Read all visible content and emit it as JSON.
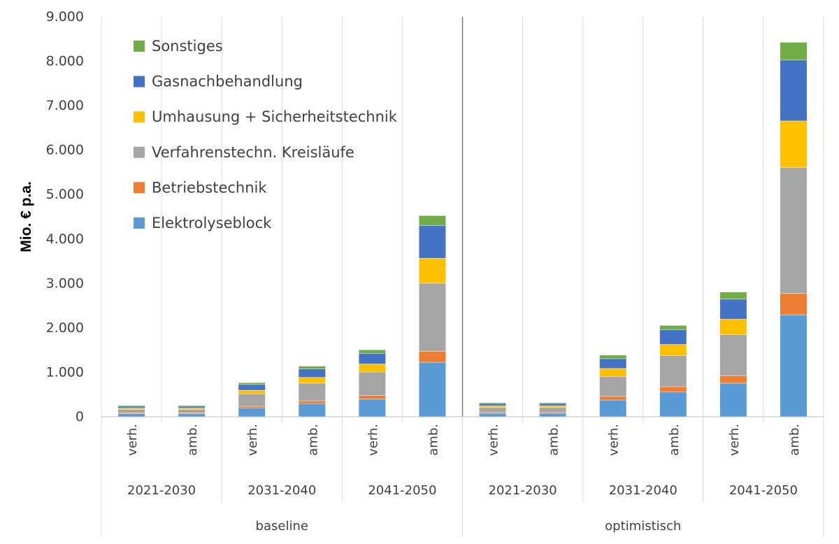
{
  "chart_data": {
    "type": "bar",
    "stacked": true,
    "ylabel": "Mio. € p.a.",
    "ylim": [
      0,
      9000
    ],
    "yticks": [
      "0",
      "1.000",
      "2.000",
      "3.000",
      "4.000",
      "5.000",
      "6.000",
      "7.000",
      "8.000",
      "9.000"
    ],
    "grid": "vertical between categories",
    "legend_position": "top-left inside plot",
    "scenarios": [
      "baseline",
      "optimistisch"
    ],
    "periods": [
      "2021-2030",
      "2031-2040",
      "2041-2050"
    ],
    "variants": [
      "verh.",
      "amb."
    ],
    "categories": [
      {
        "scenario": "baseline",
        "period": "2021-2030",
        "variant": "verh."
      },
      {
        "scenario": "baseline",
        "period": "2021-2030",
        "variant": "amb."
      },
      {
        "scenario": "baseline",
        "period": "2031-2040",
        "variant": "verh."
      },
      {
        "scenario": "baseline",
        "period": "2031-2040",
        "variant": "amb."
      },
      {
        "scenario": "baseline",
        "period": "2041-2050",
        "variant": "verh."
      },
      {
        "scenario": "baseline",
        "period": "2041-2050",
        "variant": "amb."
      },
      {
        "scenario": "optimistisch",
        "period": "2021-2030",
        "variant": "verh."
      },
      {
        "scenario": "optimistisch",
        "period": "2021-2030",
        "variant": "amb."
      },
      {
        "scenario": "optimistisch",
        "period": "2031-2040",
        "variant": "verh."
      },
      {
        "scenario": "optimistisch",
        "period": "2031-2040",
        "variant": "amb."
      },
      {
        "scenario": "optimistisch",
        "period": "2041-2050",
        "variant": "verh."
      },
      {
        "scenario": "optimistisch",
        "period": "2041-2050",
        "variant": "amb."
      }
    ],
    "series": [
      {
        "name": "Elektrolyseblock",
        "color": "#5B9BD5",
        "values": [
          70,
          70,
          200,
          300,
          400,
          1230,
          80,
          80,
          380,
          560,
          760,
          2300
        ]
      },
      {
        "name": "Betriebstechnik",
        "color": "#ED7D31",
        "values": [
          20,
          20,
          40,
          60,
          80,
          250,
          20,
          20,
          80,
          120,
          160,
          480
        ]
      },
      {
        "name": "Verfahrenstechn. Kreisläufe",
        "color": "#A5A5A5",
        "values": [
          80,
          80,
          280,
          400,
          530,
          1530,
          110,
          110,
          450,
          700,
          930,
          2830
        ]
      },
      {
        "name": "Umhausung + Sicherheitstechnik",
        "color": "#FFC000",
        "values": [
          30,
          30,
          80,
          130,
          180,
          560,
          40,
          40,
          180,
          250,
          350,
          1050
        ]
      },
      {
        "name": "Gasnachbehandlung",
        "color": "#4472C4",
        "values": [
          40,
          40,
          130,
          190,
          240,
          740,
          50,
          50,
          220,
          330,
          450,
          1370
        ]
      },
      {
        "name": "Sonstiges",
        "color": "#70AD47",
        "values": [
          20,
          20,
          40,
          60,
          80,
          220,
          20,
          20,
          80,
          100,
          160,
          400
        ]
      }
    ]
  }
}
